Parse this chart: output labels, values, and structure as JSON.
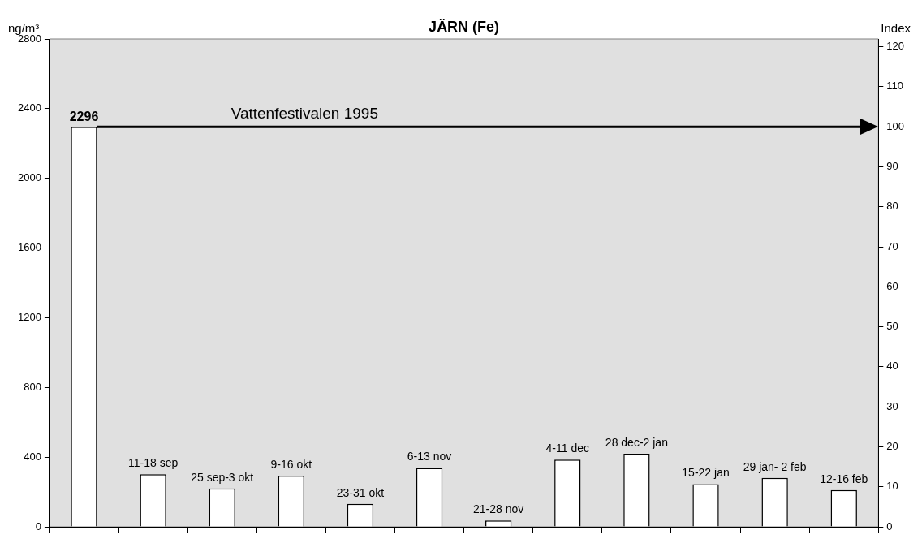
{
  "chart_data": {
    "type": "bar",
    "title": "JÄRN (Fe)",
    "ylabel": "ng/m³",
    "y2label": "Index",
    "categories": [
      null,
      "11-18 sep",
      "25 sep-3 okt",
      "9-16 okt",
      "23-31 okt",
      "6-13 nov",
      "21-28 nov",
      "4-11 dec",
      "28 dec-2 jan",
      "15-22 jan",
      "29 jan- 2 feb",
      "12-16 feb"
    ],
    "values": [
      2296,
      302,
      220,
      294,
      132,
      338,
      36,
      385,
      419,
      245,
      281,
      211
    ],
    "value_labels": [
      "2296",
      null,
      null,
      null,
      null,
      null,
      null,
      null,
      null,
      null,
      null,
      null
    ],
    "color": "#ffffff",
    "ylim": [
      0,
      2800
    ],
    "yticks": [
      0,
      400,
      800,
      1200,
      1600,
      2000,
      2400,
      2800
    ],
    "y2lim": [
      0,
      121.95
    ],
    "y2ticks": [
      0,
      10,
      20,
      30,
      40,
      50,
      60,
      70,
      80,
      90,
      100,
      110,
      120
    ],
    "ref_lines": [
      {
        "axis": "y2",
        "value": 100,
        "label": "Vattenfestivalen 1995",
        "color": "#000000"
      }
    ],
    "grid": false,
    "legend": false,
    "tick_labels": "y"
  }
}
